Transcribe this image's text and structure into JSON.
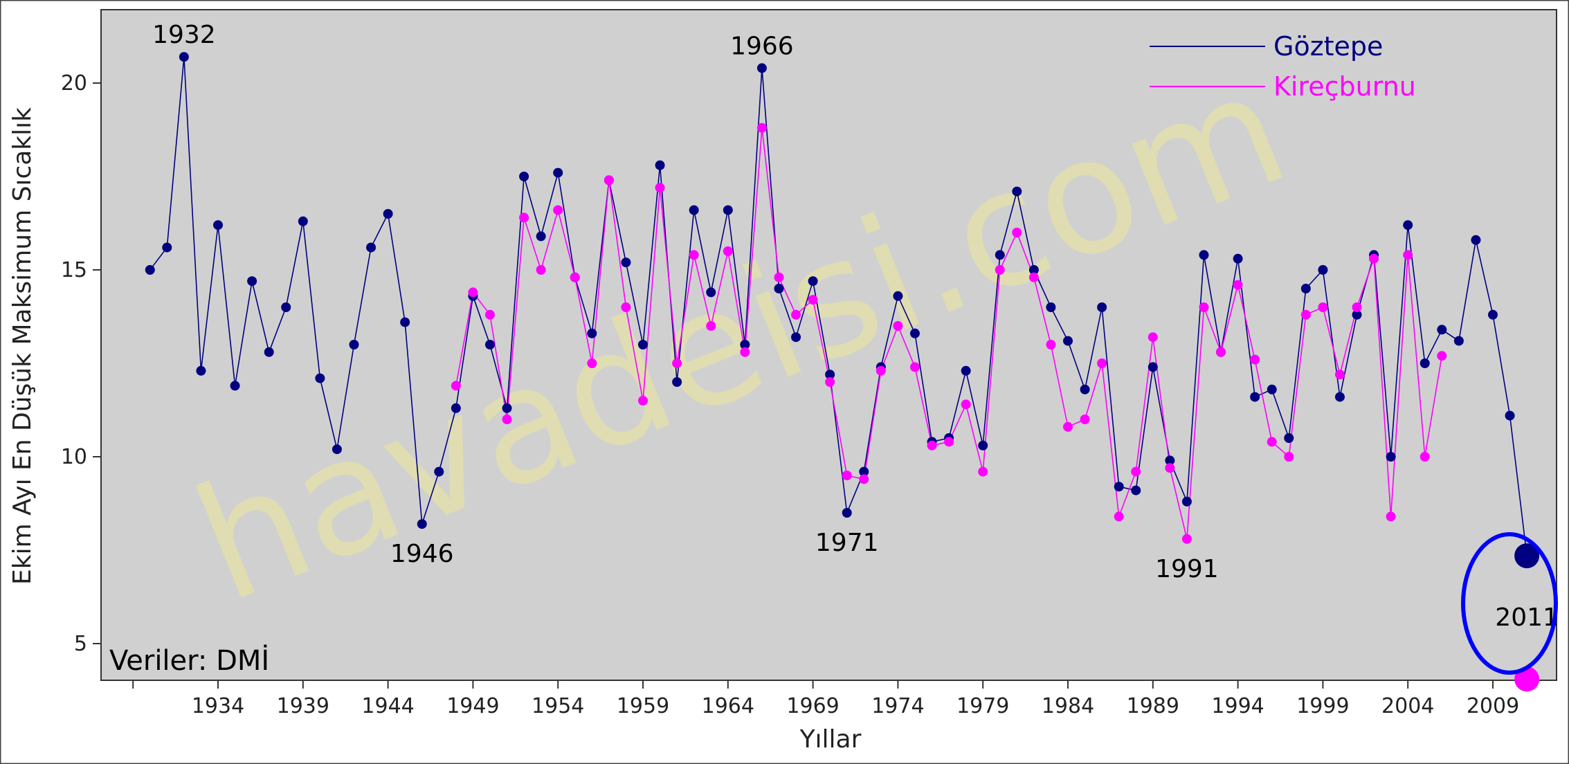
{
  "chart_data": {
    "type": "line",
    "title": "",
    "xlabel": "Yıllar",
    "ylabel": "Ekim Ayı En Düşük Maksimum Sıcaklık",
    "xlim": [
      1927,
      2015
    ],
    "ylim": [
      4,
      21.8
    ],
    "x_ticks": [
      1934,
      1939,
      1944,
      1949,
      1954,
      1959,
      1964,
      1969,
      1974,
      1979,
      1984,
      1989,
      1994,
      1999,
      2004,
      2009
    ],
    "y_ticks": [
      5,
      10,
      15,
      20
    ],
    "grid": false,
    "legend_position": "top-right",
    "series": [
      {
        "name": "Göztepe",
        "color": "#000080",
        "x": [
          1930,
          1931,
          1932,
          1933,
          1934,
          1935,
          1936,
          1937,
          1938,
          1939,
          1940,
          1941,
          1942,
          1943,
          1944,
          1945,
          1946,
          1947,
          1948,
          1949,
          1950,
          1951,
          1952,
          1953,
          1954,
          1955,
          1956,
          1957,
          1958,
          1959,
          1960,
          1961,
          1962,
          1963,
          1964,
          1965,
          1966,
          1967,
          1968,
          1969,
          1970,
          1971,
          1972,
          1973,
          1974,
          1975,
          1976,
          1977,
          1978,
          1979,
          1980,
          1981,
          1982,
          1983,
          1984,
          1985,
          1986,
          1987,
          1988,
          1989,
          1990,
          1991,
          1992,
          1993,
          1994,
          1995,
          1996,
          1997,
          1998,
          1999,
          2000,
          2001,
          2002,
          2003,
          2004,
          2005,
          2006,
          2007,
          2008,
          2009,
          2010,
          2011
        ],
        "values": [
          15.0,
          15.6,
          20.7,
          12.3,
          16.2,
          11.9,
          14.7,
          12.8,
          14.0,
          16.3,
          12.1,
          10.2,
          13.0,
          15.6,
          16.5,
          13.6,
          8.2,
          9.6,
          11.3,
          14.3,
          13.0,
          11.3,
          17.5,
          15.9,
          17.6,
          14.8,
          13.3,
          17.4,
          15.2,
          13.0,
          17.8,
          12.0,
          16.6,
          14.4,
          16.6,
          13.0,
          20.4,
          14.5,
          13.2,
          14.7,
          12.2,
          8.5,
          9.6,
          12.4,
          14.3,
          13.3,
          10.4,
          10.5,
          12.3,
          10.3,
          15.4,
          17.1,
          15.0,
          14.0,
          13.1,
          11.8,
          14.0,
          9.2,
          9.1,
          12.4,
          9.9,
          8.8,
          15.4,
          12.8,
          15.3,
          11.6,
          11.8,
          10.5,
          14.5,
          15.0,
          11.6,
          13.8,
          15.4,
          10.0,
          16.2,
          12.5,
          13.4,
          13.1,
          15.8,
          13.8,
          11.1,
          7.35
        ]
      },
      {
        "name": "Kireçburnu",
        "color": "#ff00ff",
        "x": [
          1948,
          1949,
          1950,
          1951,
          1952,
          1953,
          1954,
          1955,
          1956,
          1957,
          1958,
          1959,
          1960,
          1961,
          1962,
          1963,
          1964,
          1965,
          1966,
          1967,
          1968,
          1969,
          1970,
          1971,
          1972,
          1973,
          1974,
          1975,
          1976,
          1977,
          1978,
          1979,
          1980,
          1981,
          1982,
          1983,
          1984,
          1985,
          1986,
          1987,
          1988,
          1989,
          1990,
          1991,
          1992,
          1993,
          1994,
          1995,
          1996,
          1997,
          1998,
          1999,
          2000,
          2001,
          2002,
          2003,
          2004,
          2005,
          2006
        ],
        "values": [
          11.9,
          14.4,
          13.8,
          11.0,
          16.4,
          15.0,
          16.6,
          14.8,
          12.5,
          17.4,
          14.0,
          11.5,
          17.2,
          12.5,
          15.4,
          13.5,
          15.5,
          12.8,
          18.8,
          14.8,
          13.8,
          14.2,
          12.0,
          9.5,
          9.4,
          12.3,
          13.5,
          12.4,
          10.3,
          10.4,
          11.4,
          9.6,
          15.0,
          16.0,
          14.8,
          13.0,
          10.8,
          11.0,
          12.5,
          8.4,
          9.6,
          13.2,
          9.7,
          7.8,
          14.0,
          12.8,
          14.6,
          12.6,
          10.4,
          10.0,
          13.8,
          14.0,
          12.2,
          14.0,
          15.3,
          8.4,
          15.4,
          10.0,
          12.7
        ],
        "extra_point": {
          "x": 2011,
          "value": 4.05
        }
      }
    ],
    "annotations": [
      {
        "text": "1932",
        "x": 1932,
        "y": 20.7,
        "pos": "above"
      },
      {
        "text": "1966",
        "x": 1966,
        "y": 20.4,
        "pos": "above"
      },
      {
        "text": "1946",
        "x": 1946,
        "y": 8.2,
        "pos": "below"
      },
      {
        "text": "1971",
        "x": 1971,
        "y": 8.5,
        "pos": "below"
      },
      {
        "text": "1991",
        "x": 1991,
        "y": 7.8,
        "pos": "below"
      },
      {
        "text": "2011",
        "x": 2011,
        "y": 5.7,
        "pos": "center"
      }
    ],
    "source_note": "Veriler: DMİ",
    "watermark": "havadeisi.com"
  }
}
